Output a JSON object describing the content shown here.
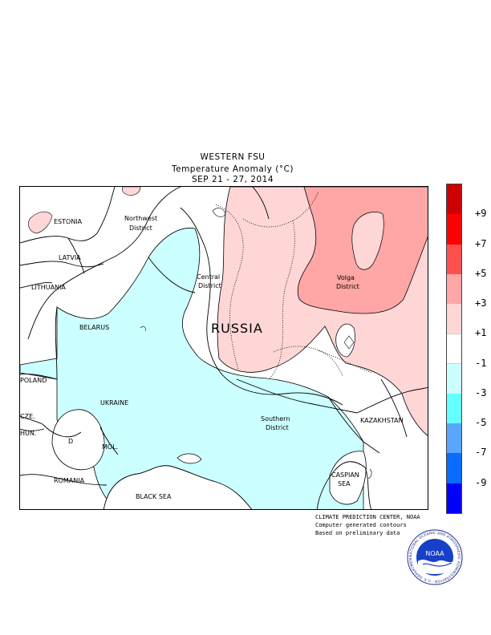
{
  "header": {
    "region": "WESTERN FSU",
    "variable": "Temperature Anomaly (°C)",
    "period": "SEP 21 - 27, 2014"
  },
  "map": {
    "labels": {
      "estonia": "ESTONIA",
      "latvia": "LATVIA",
      "lithuania": "LITHUANIA",
      "belarus": "BELARUS",
      "poland": "POLAND",
      "cze": "CZE.",
      "hun": "HUN.",
      "ukraine": "UKRAINE",
      "mol": "MOL.",
      "romania": "ROMANIA",
      "black_sea": "BLACK SEA",
      "russia": "RUSSIA",
      "northwest_1": "Northwest",
      "northwest_2": "District",
      "central_1": "Central",
      "central_2": "District",
      "volga_1": "Volga",
      "volga_2": "District",
      "southern_1": "Southern",
      "southern_2": "District",
      "kazakhstan": "KAZAKHSTAN",
      "caspian_1": "CASPIAN",
      "caspian_2": "SEA",
      "low_marker": "D"
    },
    "shading_colors": {
      "anomaly_minus1_to_minus3": "#ccffff",
      "anomaly_plus1_to_plus3": "#ffd6d6",
      "anomaly_plus3_to_plus5": "#ffa6a6"
    }
  },
  "legend": {
    "colors": [
      "#cc0000",
      "#ff0000",
      "#ff5050",
      "#ffa6a6",
      "#ffd6d6",
      "#ffffff",
      "#ccffff",
      "#66ffff",
      "#59a6ff",
      "#0a6bff",
      "#0000ff"
    ],
    "ticks": [
      "+9",
      "+7",
      "+5",
      "+3",
      "+1",
      "-1",
      "-3",
      "-5",
      "-7",
      "-9"
    ]
  },
  "credits": {
    "line1": "CLIMATE PREDICTION CENTER, NOAA",
    "line2": "Computer generated contours",
    "line3": "Based on preliminary data"
  },
  "logo": {
    "text": "NOAA",
    "ring_text": "NATIONAL OCEANIC AND ATMOSPHERIC ADMINISTRATION · U.S. DEPARTMENT OF COMMERCE"
  }
}
